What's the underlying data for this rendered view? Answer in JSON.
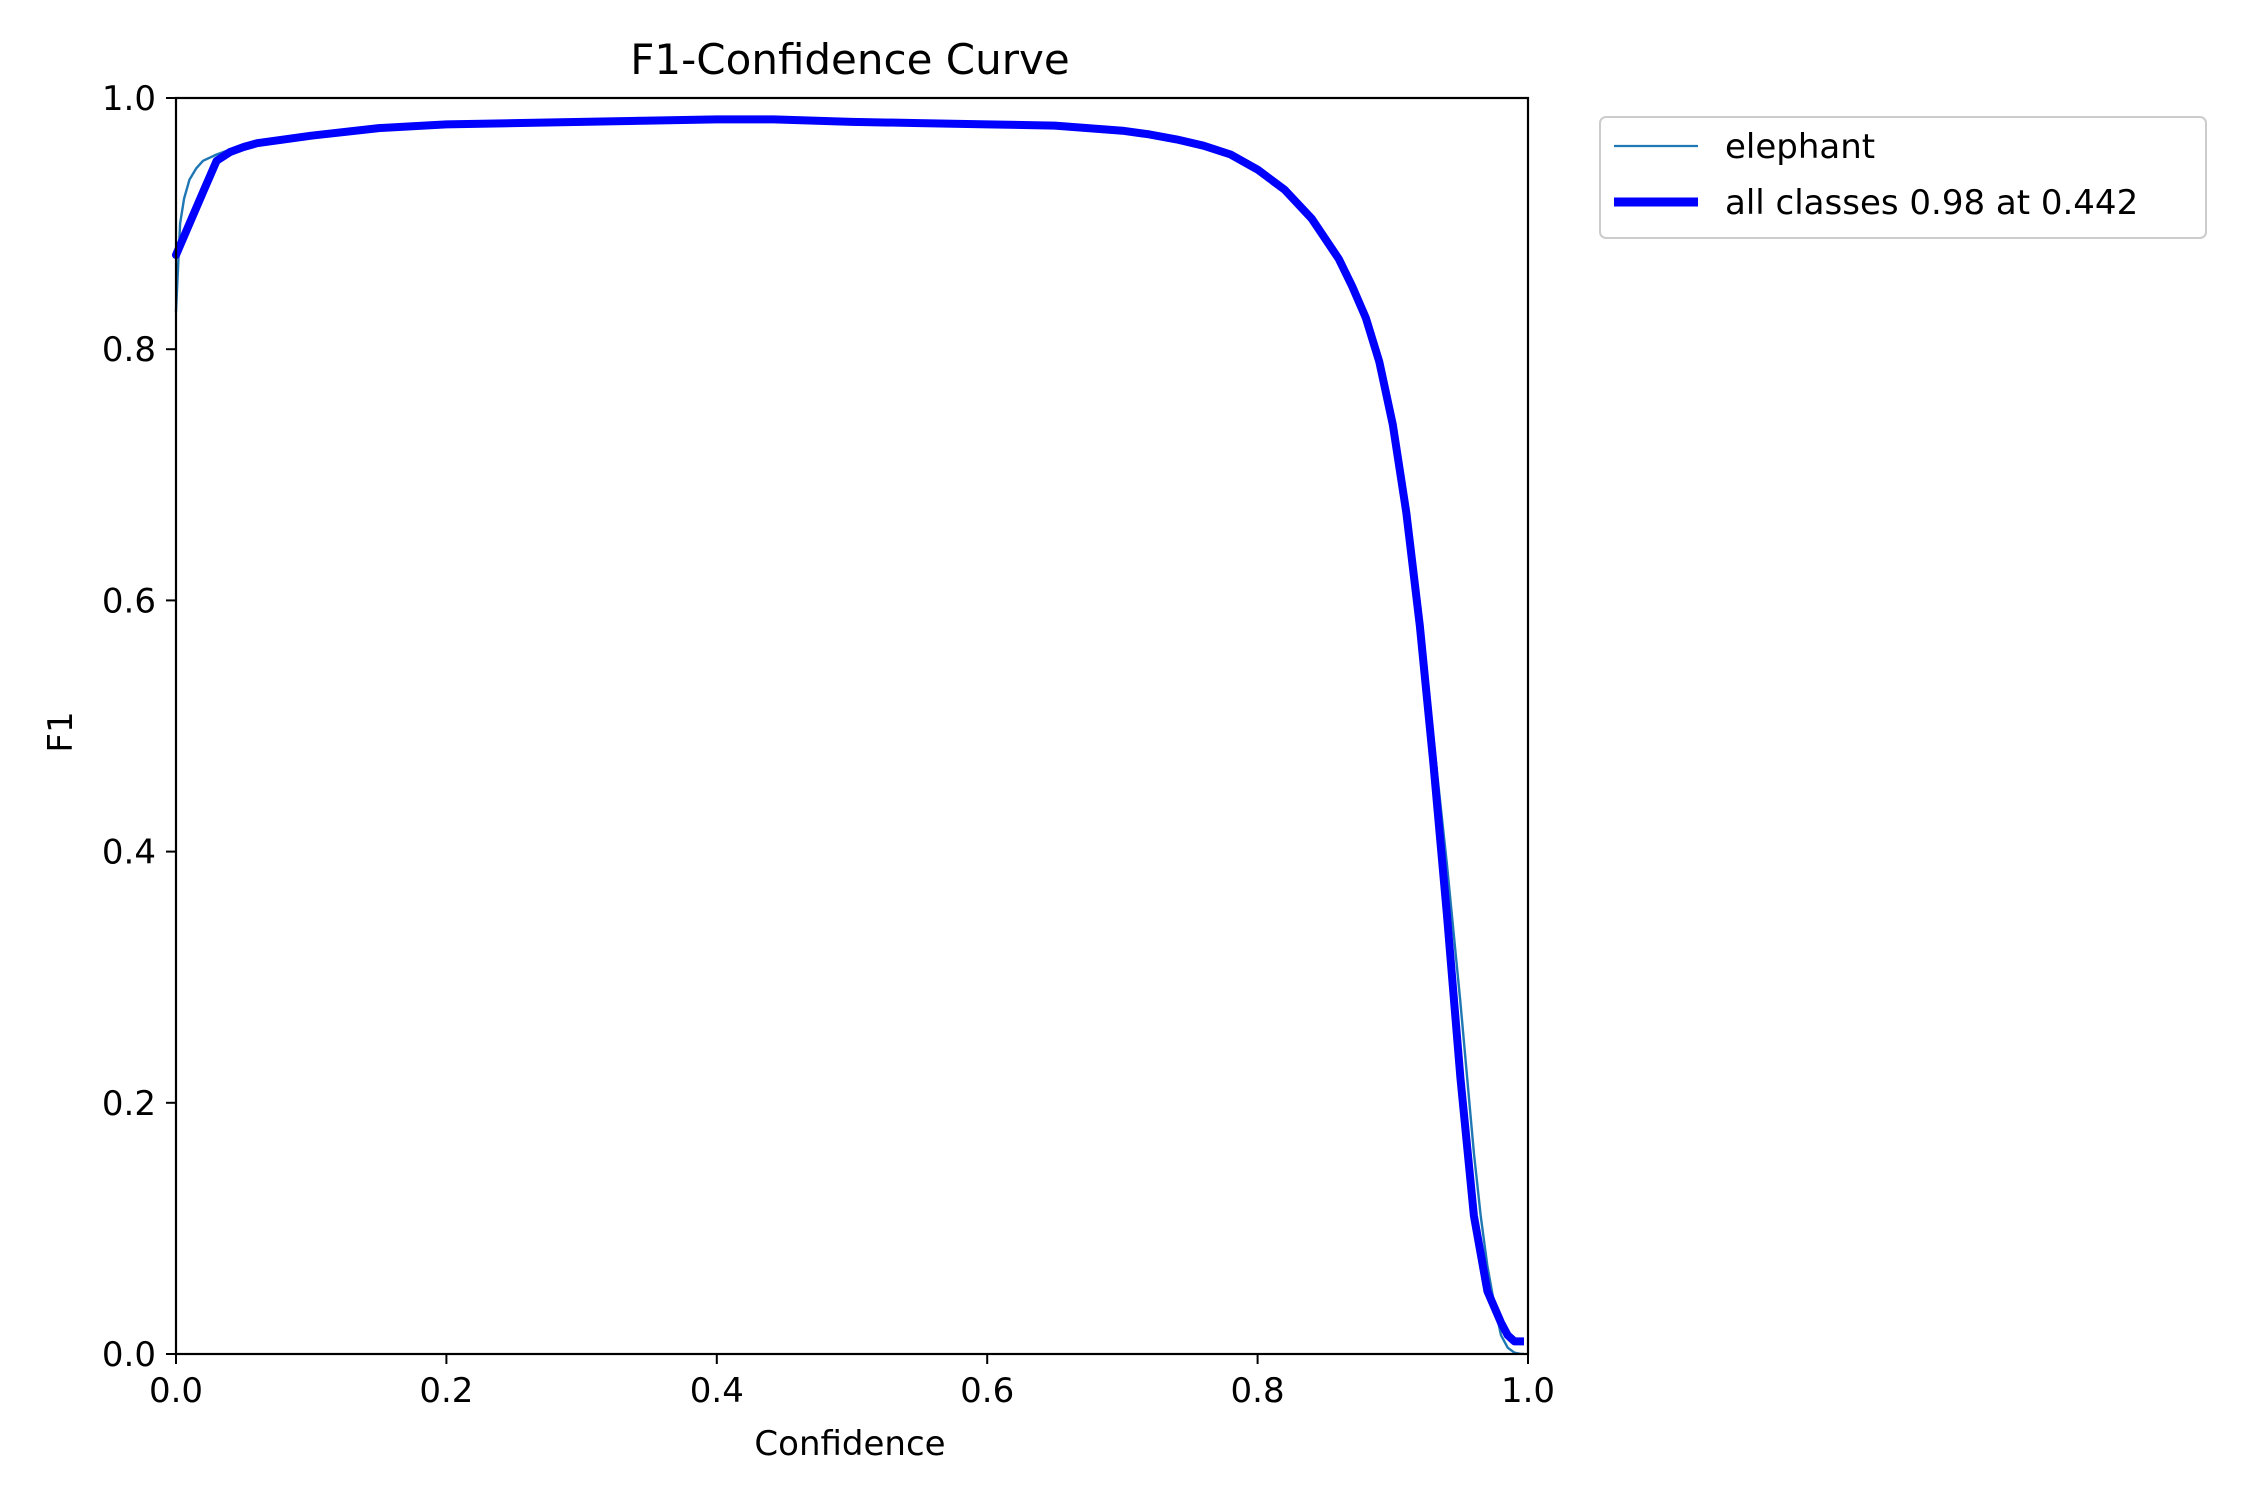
{
  "chart_data": {
    "type": "line",
    "title": "F1-Confidence Curve",
    "xlabel": "Confidence",
    "ylabel": "F1",
    "xlim": [
      0,
      1
    ],
    "ylim": [
      0,
      1
    ],
    "xticks": [
      "0.0",
      "0.2",
      "0.4",
      "0.6",
      "0.8",
      "1.0"
    ],
    "yticks": [
      "0.0",
      "0.2",
      "0.4",
      "0.6",
      "0.8",
      "1.0"
    ],
    "grid": false,
    "legend_position": "outside-top-right",
    "series": [
      {
        "name": "elephant",
        "color": "#1f77b4",
        "style": "thin",
        "x": [
          0.0,
          0.003,
          0.006,
          0.01,
          0.015,
          0.02,
          0.03,
          0.04,
          0.05,
          0.06,
          0.08,
          0.1,
          0.15,
          0.2,
          0.25,
          0.3,
          0.35,
          0.4,
          0.442,
          0.5,
          0.55,
          0.6,
          0.65,
          0.7,
          0.72,
          0.74,
          0.76,
          0.78,
          0.8,
          0.82,
          0.84,
          0.86,
          0.87,
          0.88,
          0.89,
          0.895,
          0.9,
          0.91,
          0.92,
          0.93,
          0.94,
          0.95,
          0.96,
          0.965,
          0.97,
          0.975,
          0.98,
          0.985,
          0.99,
          0.995,
          1.0
        ],
        "y": [
          0.83,
          0.9,
          0.92,
          0.935,
          0.944,
          0.95,
          0.955,
          0.959,
          0.962,
          0.965,
          0.968,
          0.971,
          0.976,
          0.979,
          0.98,
          0.981,
          0.982,
          0.983,
          0.983,
          0.981,
          0.98,
          0.979,
          0.978,
          0.974,
          0.971,
          0.967,
          0.962,
          0.955,
          0.943,
          0.927,
          0.904,
          0.872,
          0.848,
          0.822,
          0.796,
          0.77,
          0.73,
          0.66,
          0.58,
          0.49,
          0.39,
          0.28,
          0.16,
          0.11,
          0.07,
          0.04,
          0.015,
          0.005,
          0.001,
          0.0,
          0.0
        ]
      },
      {
        "name": "all classes 0.98 at 0.442",
        "color": "#0000ff",
        "style": "thick",
        "x": [
          0.0,
          0.01,
          0.02,
          0.03,
          0.04,
          0.05,
          0.06,
          0.08,
          0.1,
          0.15,
          0.2,
          0.25,
          0.3,
          0.35,
          0.4,
          0.442,
          0.5,
          0.55,
          0.6,
          0.65,
          0.7,
          0.72,
          0.74,
          0.76,
          0.78,
          0.8,
          0.82,
          0.84,
          0.86,
          0.87,
          0.88,
          0.89,
          0.9,
          0.91,
          0.92,
          0.93,
          0.94,
          0.95,
          0.96,
          0.97,
          0.98,
          0.985,
          0.99,
          0.995,
          1.0
        ],
        "y": [
          0.875,
          0.9,
          0.925,
          0.95,
          0.957,
          0.961,
          0.964,
          0.967,
          0.97,
          0.976,
          0.979,
          0.98,
          0.981,
          0.982,
          0.983,
          0.983,
          0.981,
          0.98,
          0.979,
          0.978,
          0.974,
          0.971,
          0.967,
          0.962,
          0.955,
          0.943,
          0.927,
          0.904,
          0.872,
          0.85,
          0.825,
          0.79,
          0.74,
          0.67,
          0.58,
          0.47,
          0.35,
          0.22,
          0.11,
          0.05,
          0.025,
          0.015,
          0.01,
          0.01,
          0.01
        ]
      }
    ]
  }
}
